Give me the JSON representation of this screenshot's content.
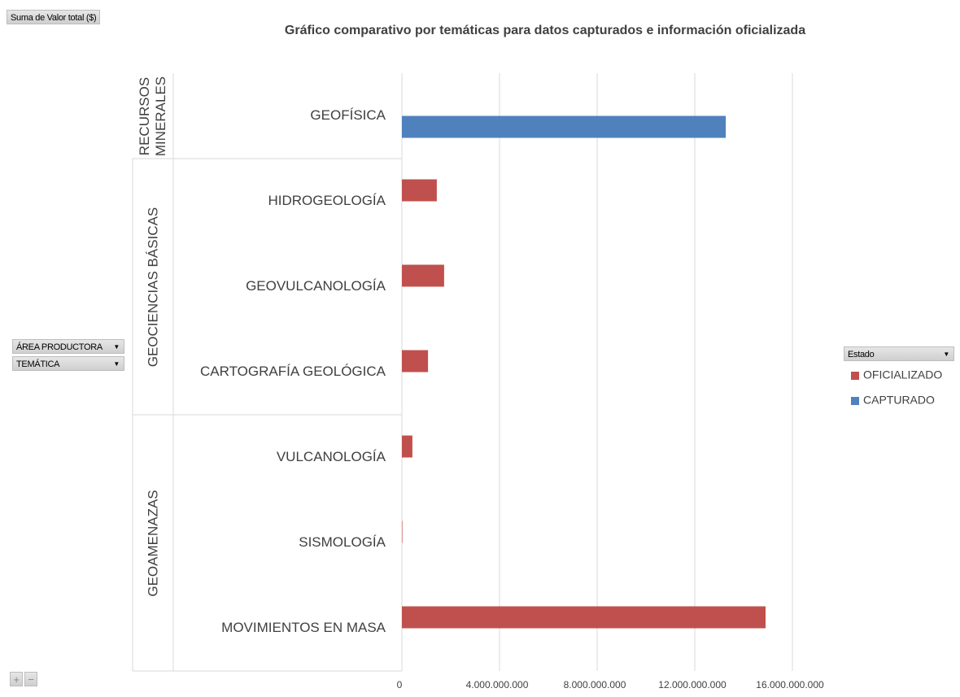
{
  "chart_data": {
    "type": "bar",
    "orientation": "horizontal",
    "title": "Gráfico comparativo por temáticas para datos capturados e información oficializada",
    "groups": [
      {
        "name": "RECURSOS MINERALES",
        "categories": [
          "GEOFÍSICA"
        ]
      },
      {
        "name": "GEOCIENCIAS BÁSICAS",
        "categories": [
          "HIDROGEOLOGÍA",
          "GEOVULCANOLOGÍA",
          "CARTOGRAFÍA GEOLÓGICA"
        ]
      },
      {
        "name": "GEOAMENAZAS",
        "categories": [
          "VULCANOLOGÍA",
          "SISMOLOGÍA",
          "MOVIMIENTOS EN MASA"
        ]
      }
    ],
    "series": [
      {
        "name": "OFICIALIZADO",
        "color": "#c0504d",
        "values": [
          null,
          1430000000,
          1730000000,
          1070000000,
          430000000,
          20000000,
          14900000000
        ]
      },
      {
        "name": "CAPTURADO",
        "color": "#4f81bd",
        "values": [
          13270000000,
          null,
          null,
          null,
          null,
          null,
          null
        ]
      }
    ],
    "xlim": [
      0,
      16000000000
    ],
    "xticks": [
      0,
      {
        "value": 4000000000,
        "label": "4.000.000.000"
      },
      {
        "value": 8000000000,
        "label": "8.000.000.000"
      },
      {
        "value": 12000000000,
        "label": "12.000.000.000"
      },
      {
        "value": 16000000000,
        "label": "16.000.000.000"
      }
    ],
    "grid": true,
    "legend": "right",
    "legend_title": "Estado"
  },
  "field_buttons": {
    "values": "Suma de Valor total ($)",
    "rows": [
      "ÁREA PRODUCTORA",
      "TEMÁTICA"
    ]
  }
}
